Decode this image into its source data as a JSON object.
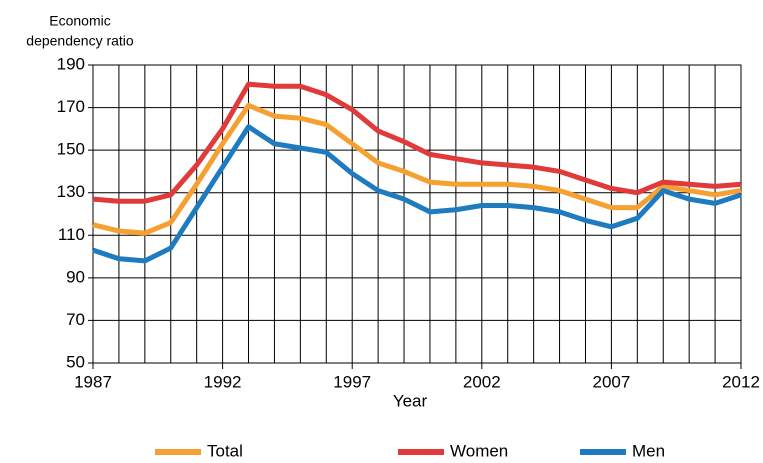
{
  "chart_data": {
    "type": "line",
    "ylabel": [
      "Economic",
      "dependency ratio"
    ],
    "xlabel": "Year",
    "x": [
      1987,
      1988,
      1989,
      1990,
      1991,
      1992,
      1993,
      1994,
      1995,
      1996,
      1997,
      1998,
      1999,
      2000,
      2001,
      2002,
      2003,
      2004,
      2005,
      2006,
      2007,
      2008,
      2009,
      2010,
      2011,
      2012
    ],
    "xlim": [
      1987,
      2012
    ],
    "xticks": [
      1987,
      1992,
      1997,
      2002,
      2007,
      2012
    ],
    "ylim": [
      50,
      190
    ],
    "yticks": [
      50,
      70,
      90,
      110,
      130,
      150,
      170,
      190
    ],
    "grid": true,
    "series": [
      {
        "name": "Total",
        "color": "#f5a030",
        "values": [
          115,
          112,
          111,
          116,
          134,
          153,
          171,
          166,
          165,
          162,
          153,
          144,
          140,
          135,
          134,
          134,
          134,
          133,
          131,
          127,
          123,
          123,
          133,
          131,
          129,
          131
        ]
      },
      {
        "name": "Women",
        "color": "#e03a3a",
        "values": [
          127,
          126,
          126,
          129,
          143,
          160,
          181,
          180,
          180,
          176,
          169,
          159,
          154,
          148,
          146,
          144,
          143,
          142,
          140,
          136,
          132,
          130,
          135,
          134,
          133,
          134
        ]
      },
      {
        "name": "Men",
        "color": "#1f7bc0",
        "values": [
          103,
          99,
          98,
          104,
          123,
          142,
          161,
          153,
          151,
          149,
          139,
          131,
          127,
          121,
          122,
          124,
          124,
          123,
          121,
          117,
          114,
          118,
          131,
          127,
          125,
          129
        ]
      }
    ]
  }
}
